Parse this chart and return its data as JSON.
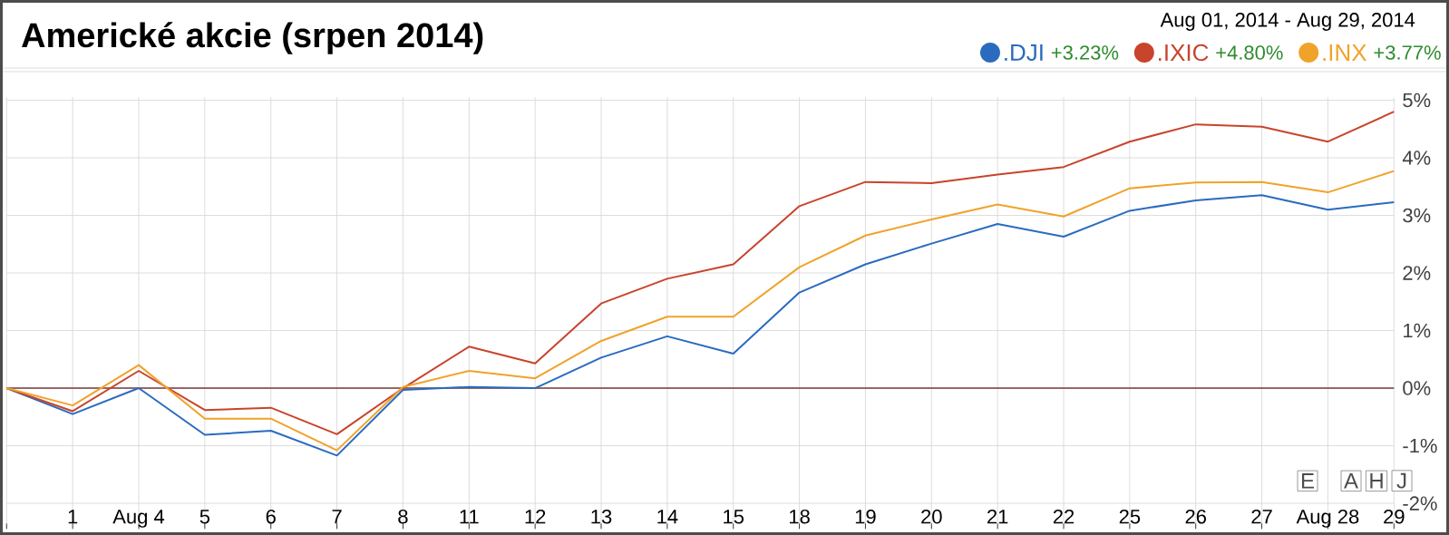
{
  "chart_data": {
    "type": "line",
    "title": "Americké akcie (srpen 2014)",
    "subtitle": "Aug 01, 2014  -  Aug 29, 2014",
    "categories": [
      null,
      "1",
      "Aug 4",
      "5",
      "6",
      "7",
      "8",
      "11",
      "12",
      "13",
      "14",
      "15",
      "18",
      "19",
      "20",
      "21",
      "22",
      "25",
      "26",
      "27",
      "Aug 28",
      "29"
    ],
    "series": [
      {
        "name": ".DJI",
        "color": "#2a6bbf",
        "values": [
          0,
          -0.45,
          0.0,
          -0.81,
          -0.74,
          -1.17,
          -0.03,
          0.02,
          0.0,
          0.53,
          0.9,
          0.6,
          1.66,
          2.15,
          2.51,
          2.85,
          2.63,
          3.08,
          3.26,
          3.35,
          3.1,
          3.23
        ]
      },
      {
        "name": ".IXIC",
        "color": "#c8442c",
        "values": [
          0,
          -0.4,
          0.3,
          -0.38,
          -0.34,
          -0.8,
          0.0,
          0.72,
          0.43,
          1.47,
          1.9,
          2.15,
          3.16,
          3.58,
          3.56,
          3.71,
          3.84,
          4.28,
          4.58,
          4.54,
          4.28,
          4.8
        ]
      },
      {
        "name": ".INX",
        "color": "#f0a32a",
        "values": [
          0,
          -0.3,
          0.4,
          -0.53,
          -0.53,
          -1.08,
          0.02,
          0.3,
          0.17,
          0.82,
          1.24,
          1.24,
          2.1,
          2.65,
          2.93,
          3.19,
          2.98,
          3.47,
          3.57,
          3.58,
          3.4,
          3.77
        ]
      }
    ],
    "annotations": [
      "+3.23%",
      "+4.80%",
      "+3.77%",
      "E",
      "A",
      "H",
      "J"
    ],
    "ylim": [
      -2.35,
      5.05
    ],
    "yticks": [
      {
        "value": -2,
        "label": "-2%"
      },
      {
        "value": -1,
        "label": "-1%"
      },
      {
        "value": 0,
        "label": "0%"
      },
      {
        "value": 1,
        "label": "1%"
      },
      {
        "value": 2,
        "label": "2%"
      },
      {
        "value": 3,
        "label": "3%"
      },
      {
        "value": 4,
        "label": "4%"
      },
      {
        "value": 5,
        "label": "5%"
      }
    ],
    "ref_lines": [
      {
        "axis": "y",
        "value": 0,
        "color": "#7b3b3b"
      }
    ],
    "grid": true,
    "legend": "top right"
  }
}
